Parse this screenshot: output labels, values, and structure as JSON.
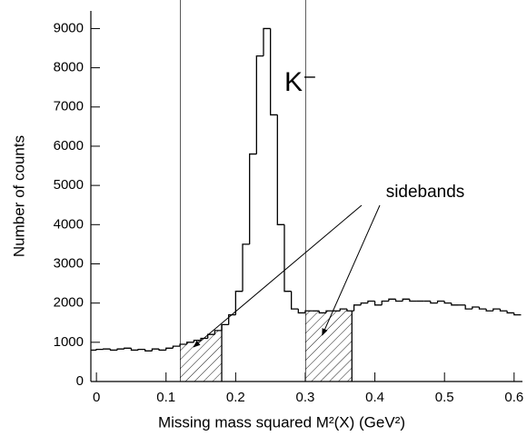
{
  "chart_data": {
    "type": "histogram",
    "xlabel": "Missing mass squared  M²(X)   (GeV²)",
    "ylabel": "Number of counts",
    "peak_label": "K⁻",
    "sideband_label": "sidebands",
    "color": "#000000",
    "bins": [
      -0.01,
      0.0,
      0.01,
      0.02,
      0.03,
      0.04,
      0.05,
      0.06,
      0.07,
      0.08,
      0.09,
      0.1,
      0.11,
      0.12,
      0.13,
      0.14,
      0.15,
      0.16,
      0.17,
      0.18,
      0.19,
      0.2,
      0.21,
      0.22,
      0.23,
      0.24,
      0.25,
      0.26,
      0.27,
      0.28,
      0.29,
      0.3,
      0.31,
      0.32,
      0.33,
      0.34,
      0.35,
      0.36,
      0.37,
      0.38,
      0.39,
      0.4,
      0.41,
      0.42,
      0.43,
      0.44,
      0.45,
      0.46,
      0.47,
      0.48,
      0.49,
      0.5,
      0.51,
      0.52,
      0.53,
      0.54,
      0.55,
      0.56,
      0.57,
      0.58,
      0.59,
      0.6,
      0.61
    ],
    "values": [
      800,
      820,
      830,
      800,
      830,
      850,
      800,
      820,
      780,
      830,
      800,
      850,
      900,
      950,
      1000,
      1050,
      1100,
      1200,
      1300,
      1450,
      1700,
      2300,
      3500,
      5800,
      8300,
      9000,
      6800,
      4000,
      2300,
      1850,
      1750,
      1800,
      1800,
      1750,
      1800,
      1800,
      1850,
      1800,
      1950,
      2000,
      2050,
      1950,
      2050,
      2100,
      2050,
      2100,
      2050,
      2050,
      2050,
      2000,
      2050,
      2000,
      1950,
      1950,
      1850,
      1900,
      1850,
      1800,
      1850,
      1800,
      1750,
      1700
    ],
    "sidebands": [
      [
        0.12,
        0.18
      ],
      [
        0.3,
        0.367
      ]
    ],
    "xlim": [
      -0.008,
      0.612
    ],
    "xticks": [
      0,
      0.1,
      0.2,
      0.3,
      0.4,
      0.5,
      0.6
    ],
    "ylim": [
      0,
      9450
    ],
    "yticks": [
      0,
      1000,
      2000,
      3000,
      4000,
      5000,
      6000,
      7000,
      8000,
      9000
    ]
  }
}
